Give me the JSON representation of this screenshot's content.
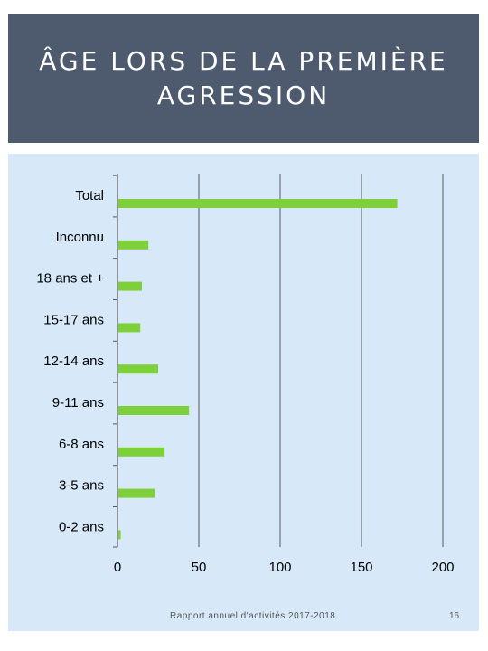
{
  "slide": {
    "title": "ÂGE LORS DE LA PREMIÈRE\nAGRESSION",
    "footer": "Rapport annuel d'activités 2017-2018",
    "page_number": "16"
  },
  "colors": {
    "title_band": "#4e5b6e",
    "panel": "#d7e9f9",
    "bar": "#7ed03a",
    "gridline": "#595959"
  },
  "chart_data": {
    "type": "bar",
    "orientation": "horizontal",
    "categories": [
      "Total",
      "Inconnu",
      "18 ans et +",
      "15-17 ans",
      "12-14 ans",
      "9-11 ans",
      "6-8 ans",
      "3-5 ans",
      "0-2 ans"
    ],
    "values": [
      172,
      19,
      15,
      14,
      25,
      44,
      29,
      23,
      2
    ],
    "xlim": [
      0,
      200
    ],
    "xticks": [
      "0",
      "50",
      "100",
      "150",
      "200"
    ],
    "xtick_values": [
      0,
      50,
      100,
      150,
      200
    ],
    "grid": true,
    "title": "",
    "xlabel": "",
    "ylabel": ""
  }
}
